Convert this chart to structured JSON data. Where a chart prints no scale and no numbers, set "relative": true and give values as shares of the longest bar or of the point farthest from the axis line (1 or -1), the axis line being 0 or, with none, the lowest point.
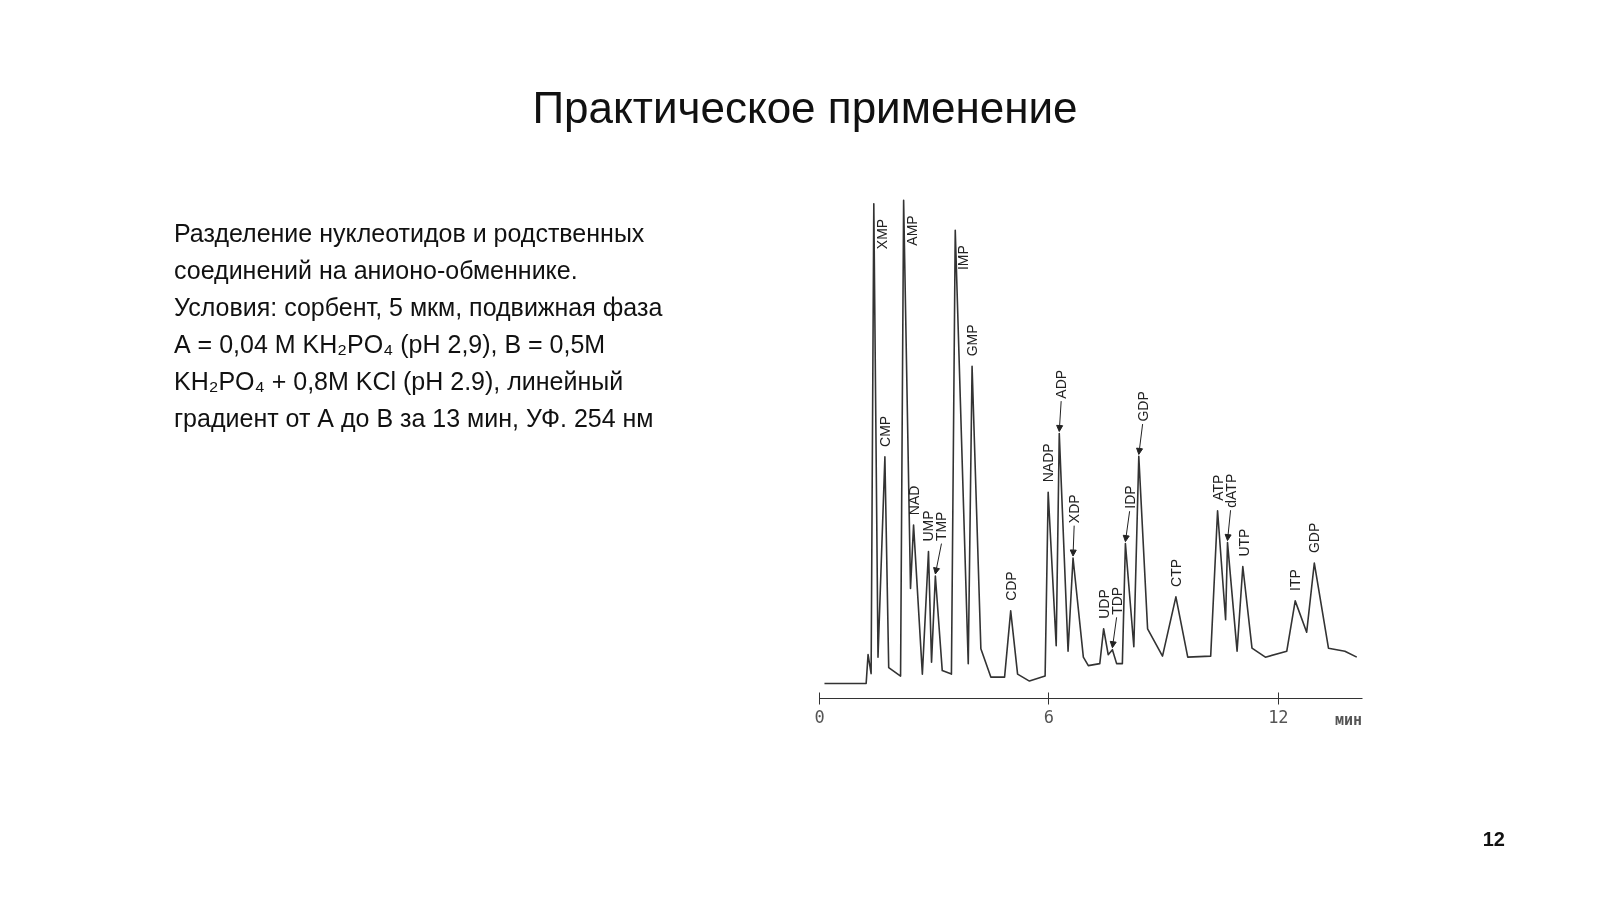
{
  "chart_data": {
    "type": "line",
    "title": "Практическое применение",
    "relative": true,
    "xlabel": "мин",
    "x": [
      0.13,
      1.22,
      1.27,
      1.35,
      1.42,
      1.53,
      1.71,
      1.81,
      2.12,
      2.2,
      2.38,
      2.46,
      2.69,
      2.85,
      2.93,
      3.03,
      3.21,
      3.45,
      3.55,
      3.89,
      3.99,
      4.22,
      4.48,
      4.84,
      5.0,
      5.18,
      5.49,
      5.9,
      5.98,
      6.19,
      6.27,
      6.5,
      6.63,
      6.9,
      7.03,
      7.33,
      7.43,
      7.55,
      7.66,
      7.77,
      7.92,
      8.0,
      8.22,
      8.35,
      8.58,
      8.97,
      9.32,
      9.63,
      10.23,
      10.41,
      10.62,
      10.67,
      10.92,
      11.07,
      11.31,
      11.66,
      12.22,
      12.44,
      12.74,
      12.94,
      13.31,
      13.74,
      14.05
    ],
    "series": [
      {
        "color": "#333333",
        "values": [
          0.03,
          0.03,
          0.088,
          0.05,
          0.993,
          0.083,
          0.485,
          0.062,
          0.045,
          1.0,
          0.221,
          0.348,
          0.049,
          0.295,
          0.073,
          0.246,
          0.056,
          0.049,
          0.94,
          0.07,
          0.667,
          0.1,
          0.043,
          0.043,
          0.176,
          0.049,
          0.035,
          0.045,
          0.414,
          0.106,
          0.532,
          0.095,
          0.282,
          0.083,
          0.066,
          0.07,
          0.14,
          0.088,
          0.098,
          0.07,
          0.07,
          0.311,
          0.104,
          0.486,
          0.14,
          0.085,
          0.204,
          0.083,
          0.085,
          0.377,
          0.158,
          0.313,
          0.095,
          0.265,
          0.101,
          0.083,
          0.095,
          0.196,
          0.133,
          0.272,
          0.101,
          0.095,
          0.083
        ]
      }
    ],
    "xlim": [
      0,
      14.2
    ],
    "xticks": [
      0,
      6,
      12
    ],
    "tick_labels": "x",
    "grid": false,
    "marker": "none",
    "line_style": "solid",
    "annotations": [
      "Разделение нуклеотидов и родственных соединений на анионо-обменнике.",
      "Условия: сорбент, 5 мкм, подвижная фаза А = 0,04 М KH₂PO₄ (pH 2,9), В = 0,5М KH₂PO₄ + 0,8М KCl (pH 2.9), линейный градиент от А до В за 13 мин, УФ. 254 нм",
      "12",
      {
        "text": "XMP",
        "x": 1.42,
        "y": 0.993
      },
      {
        "text": "CMP",
        "x": 1.71,
        "y": 0.485
      },
      {
        "text": "AMP",
        "x": 2.2,
        "y": 1.0
      },
      {
        "text": "NAD",
        "x": 2.46,
        "y": 0.348
      },
      {
        "text": "UMP",
        "x": 2.85,
        "y": 0.295
      },
      {
        "text": "TMP",
        "x": 3.03,
        "y": 0.246
      },
      {
        "text": "IMP",
        "x": 3.55,
        "y": 0.94
      },
      {
        "text": "GMP",
        "x": 3.99,
        "y": 0.667
      },
      {
        "text": "CDP",
        "x": 5.0,
        "y": 0.176
      },
      {
        "text": "NADP",
        "x": 5.98,
        "y": 0.414
      },
      {
        "text": "ADP",
        "x": 6.27,
        "y": 0.532
      },
      {
        "text": "XDP",
        "x": 6.63,
        "y": 0.282
      },
      {
        "text": "UDP",
        "x": 7.43,
        "y": 0.14
      },
      {
        "text": "TDP",
        "x": 7.66,
        "y": 0.098
      },
      {
        "text": "IDP",
        "x": 8.0,
        "y": 0.311
      },
      {
        "text": "GDP",
        "x": 8.35,
        "y": 0.486
      },
      {
        "text": "CTP",
        "x": 9.32,
        "y": 0.204
      },
      {
        "text": "ATP",
        "x": 10.41,
        "y": 0.377
      },
      {
        "text": "dATP",
        "x": 10.67,
        "y": 0.313
      },
      {
        "text": "UTP",
        "x": 11.07,
        "y": 0.265
      },
      {
        "text": "ITP",
        "x": 12.44,
        "y": 0.196
      },
      {
        "text": "GDP",
        "x": 12.94,
        "y": 0.272
      }
    ]
  }
}
